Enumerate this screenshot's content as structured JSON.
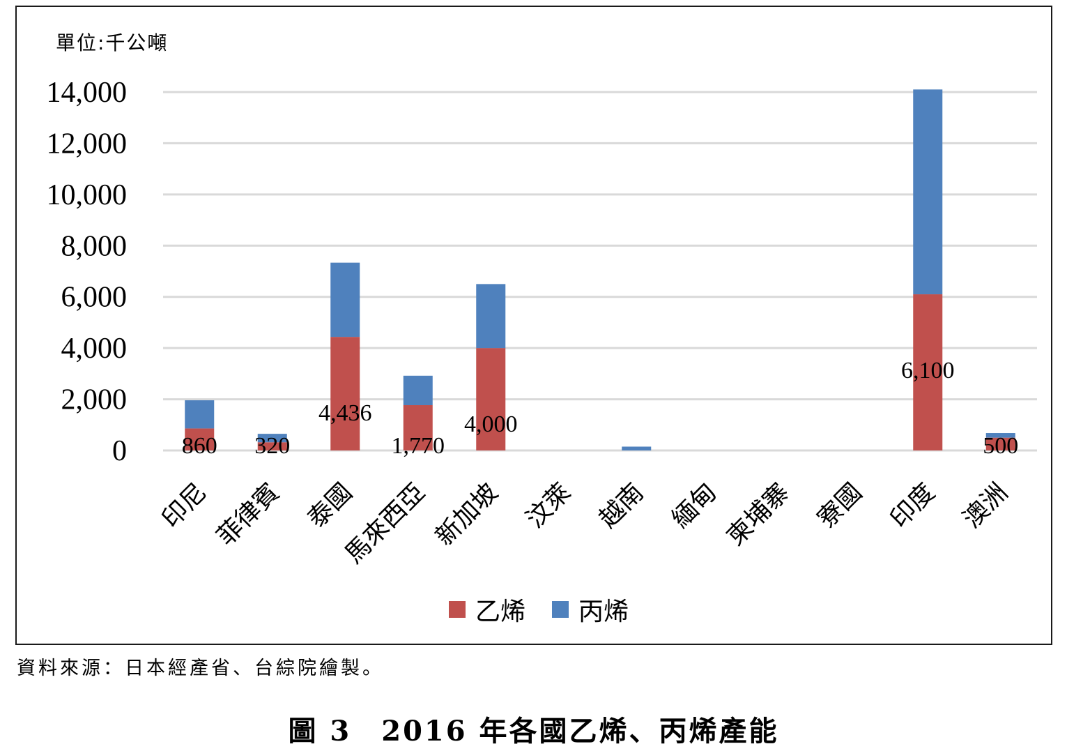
{
  "unit_label": "單位:千公噸",
  "source_note": "資料來源：日本經產省、台綜院繪製。",
  "caption": "圖 3　2016 年各國乙烯、丙烯產能",
  "colors": {
    "ethylene": "#c0504d",
    "propylene": "#4f81bd",
    "grid": "#d9d9d9"
  },
  "chart_data": {
    "type": "bar",
    "stacked": true,
    "categories": [
      "印尼",
      "菲律賓",
      "泰國",
      "馬來西亞",
      "新加坡",
      "汶萊",
      "越南",
      "緬甸",
      "柬埔寨",
      "寮國",
      "印度",
      "澳洲"
    ],
    "series": [
      {
        "name": "乙烯",
        "values": [
          860,
          320,
          4436,
          1770,
          4000,
          0,
          0,
          0,
          0,
          0,
          6100,
          500
        ]
      },
      {
        "name": "丙烯",
        "values": [
          1100,
          330,
          2900,
          1150,
          2500,
          0,
          150,
          0,
          0,
          0,
          8000,
          180
        ]
      }
    ],
    "data_labels": [
      "860",
      "320",
      "4,436",
      "1,770",
      "4,000",
      "",
      "",
      "",
      "",
      "",
      "6,100",
      "500"
    ],
    "yticks": [
      "0",
      "2,000",
      "4,000",
      "6,000",
      "8,000",
      "10,000",
      "12,000",
      "14,000"
    ],
    "ylim": [
      0,
      14000
    ],
    "grid": true,
    "legend_position": "bottom"
  }
}
